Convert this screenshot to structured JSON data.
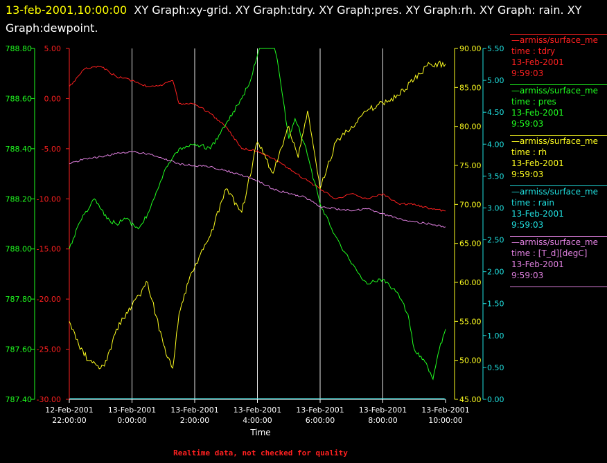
{
  "title": {
    "timestamp": "13-feb-2001,10:00:00",
    "text": "XY Graph:xy-grid.  XY Graph:tdry.  XY Graph:pres.  XY Graph:rh.  XY Graph: rain.  XY Graph:dewpoint."
  },
  "footer": "Realtime data, not checked for quality",
  "legend": [
    {
      "source": "—armiss/surface_me",
      "label": "time : tdry",
      "date": "13-Feb-2001",
      "time": "9:59:03",
      "color": "#ff2020"
    },
    {
      "source": "—armiss/surface_me",
      "label": "time : pres",
      "date": "13-Feb-2001",
      "time": "9:59:03",
      "color": "#20ff20"
    },
    {
      "source": "—armiss/surface_me",
      "label": "time : rh",
      "date": "13-Feb-2001",
      "time": "9:59:03",
      "color": "#ffff20"
    },
    {
      "source": "—armiss/surface_me",
      "label": "time : rain",
      "date": "13-Feb-2001",
      "time": "9:59:03",
      "color": "#20e0e0"
    },
    {
      "source": "—armiss/surface_me",
      "label": "time : [T_d][degC]",
      "date": "13-Feb-2001",
      "time": "9:59:03",
      "color": "#e080e0"
    }
  ],
  "chart_data": {
    "type": "line",
    "xlabel": "Time",
    "x_ticks": [
      {
        "hour": 0,
        "label": [
          "12-Feb-2001",
          "22:00:00"
        ]
      },
      {
        "hour": 2,
        "label": [
          "13-Feb-2001",
          "0:00:00"
        ]
      },
      {
        "hour": 4,
        "label": [
          "13-Feb-2001",
          "2:00:00"
        ]
      },
      {
        "hour": 6,
        "label": [
          "13-Feb-2001",
          "4:00:00"
        ]
      },
      {
        "hour": 8,
        "label": [
          "13-Feb-2001",
          "6:00:00"
        ]
      },
      {
        "hour": 10,
        "label": [
          "13-Feb-2001",
          "8:00:00"
        ]
      },
      {
        "hour": 12,
        "label": [
          "13-Feb-2001",
          "10:00:00"
        ]
      }
    ],
    "xlim": [
      0,
      12
    ],
    "axes": {
      "temp": {
        "color": "#ff2020",
        "lim": [
          -30,
          5
        ],
        "ticks": [
          "5.00",
          "0.00",
          "-5.00",
          "-10.00",
          "-15.00",
          "-20.00",
          "-25.00",
          "-30.00"
        ]
      },
      "pres": {
        "color": "#20ff20",
        "lim": [
          787.4,
          788.8
        ],
        "ticks": [
          "788.80",
          "788.60",
          "788.40",
          "788.20",
          "788.00",
          "787.80",
          "787.60",
          "787.40"
        ]
      },
      "rh": {
        "color": "#ffff20",
        "lim": [
          45,
          90
        ],
        "ticks": [
          "90.00",
          "85.00",
          "80.00",
          "75.00",
          "70.00",
          "65.00",
          "60.00",
          "55.00",
          "50.00",
          "45.00"
        ]
      },
      "rain": {
        "color": "#20e0e0",
        "lim": [
          0,
          5.5
        ],
        "ticks": [
          "5.50",
          "5.00",
          "4.50",
          "4.00",
          "3.50",
          "3.00",
          "2.50",
          "2.00",
          "1.50",
          "1.00",
          "0.50",
          "0.00"
        ]
      }
    },
    "series": [
      {
        "key": "tdry",
        "axis": "temp",
        "color": "#ff2020",
        "x": [
          0,
          0.5,
          1,
          1.5,
          2,
          2.5,
          3,
          3.3,
          3.5,
          4,
          4.5,
          5,
          5.5,
          6,
          6.5,
          7,
          7.5,
          8,
          8.5,
          9,
          9.5,
          10,
          10.5,
          11,
          11.5,
          12
        ],
        "y": [
          1.2,
          3,
          3.2,
          2.2,
          1.8,
          1.2,
          1.4,
          1.8,
          -0.5,
          -0.5,
          -1.5,
          -2.8,
          -5,
          -5.2,
          -6,
          -7,
          -8,
          -9,
          -10,
          -9.5,
          -10,
          -9.5,
          -10.5,
          -10.5,
          -11,
          -11.2
        ]
      },
      {
        "key": "pres",
        "axis": "pres",
        "color": "#20ff20",
        "x": [
          0,
          0.3,
          0.8,
          1.2,
          1.5,
          1.8,
          2.2,
          2.5,
          3,
          3.5,
          4,
          4.5,
          5,
          5.5,
          5.8,
          6.2,
          6.5,
          7,
          7.2,
          7.5,
          8,
          8.5,
          9,
          9.5,
          10,
          10.5,
          10.8,
          11,
          11.3,
          11.6,
          11.8,
          12
        ],
        "y": [
          788.0,
          788.1,
          788.2,
          788.12,
          788.1,
          788.12,
          788.08,
          788.14,
          788.3,
          788.4,
          788.42,
          788.4,
          788.5,
          788.6,
          788.68,
          788.88,
          788.86,
          788.44,
          788.52,
          788.42,
          788.18,
          788.05,
          787.94,
          787.86,
          787.88,
          787.82,
          787.74,
          787.6,
          787.56,
          787.48,
          787.6,
          787.68
        ]
      },
      {
        "key": "rh",
        "axis": "rh",
        "color": "#ffff20",
        "x": [
          0,
          0.3,
          0.6,
          1,
          1.2,
          1.5,
          2,
          2.5,
          3,
          3.3,
          3.5,
          3.8,
          4,
          4.5,
          5,
          5.5,
          6,
          6.5,
          7,
          7.3,
          7.6,
          8,
          8.5,
          9,
          9.5,
          10,
          10.5,
          11,
          11.5,
          12
        ],
        "y": [
          55,
          52,
          50,
          49,
          50,
          54,
          57,
          60,
          52,
          49,
          56,
          60,
          62,
          66,
          72,
          69,
          78,
          74,
          80,
          76,
          82,
          72,
          78,
          80,
          82,
          83,
          84,
          86,
          88,
          88
        ]
      },
      {
        "key": "rain",
        "axis": "rain",
        "color": "#20e0e0",
        "x": [
          0,
          12
        ],
        "y": [
          0,
          0
        ]
      },
      {
        "key": "dewpoint",
        "axis": "temp",
        "color": "#e080e0",
        "x": [
          0,
          0.5,
          1,
          1.5,
          2,
          2.5,
          3,
          3.5,
          4,
          4.5,
          5,
          5.5,
          6,
          6.5,
          7,
          7.5,
          8,
          8.5,
          9,
          9.5,
          10,
          10.5,
          11,
          11.5,
          12
        ],
        "y": [
          -6.5,
          -6,
          -5.8,
          -5.5,
          -5.3,
          -5.5,
          -6,
          -6.5,
          -6.7,
          -6.8,
          -7.2,
          -7.6,
          -8.2,
          -9,
          -9.5,
          -9.8,
          -10.8,
          -11,
          -11.2,
          -11,
          -11.5,
          -12,
          -12.3,
          -12.5,
          -12.8
        ]
      }
    ]
  }
}
